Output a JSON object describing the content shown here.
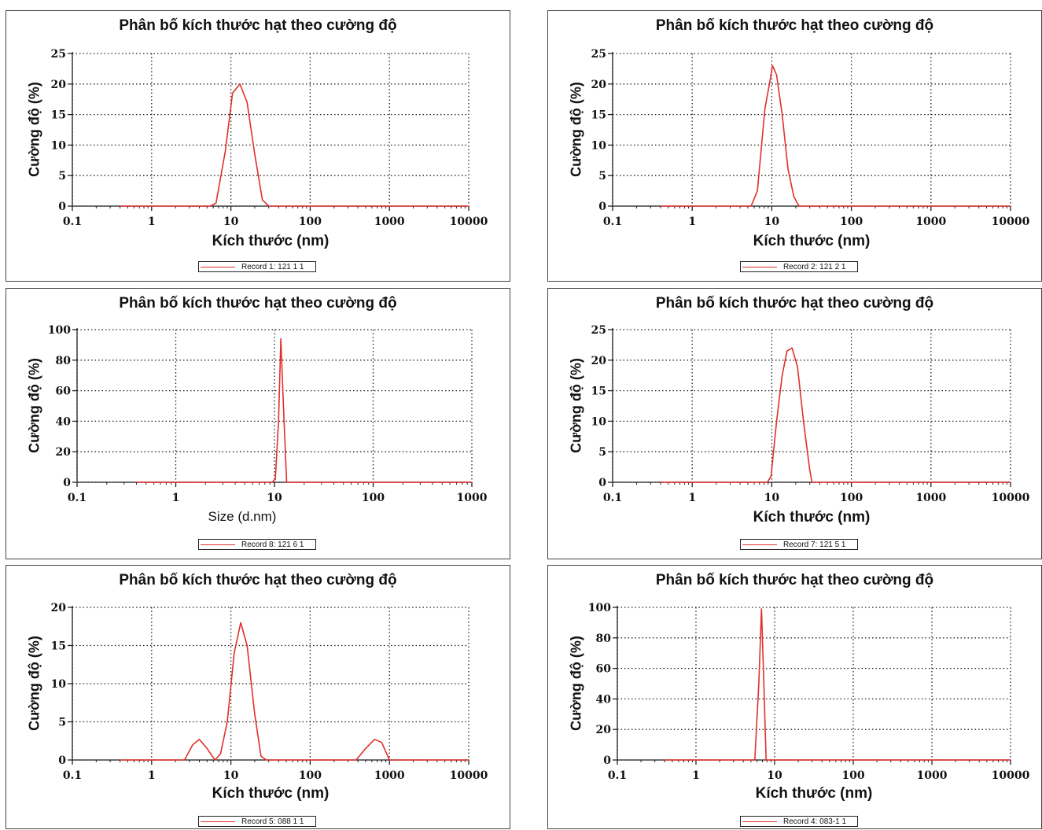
{
  "colors": {
    "series": "#e0302b",
    "grid": "#222222",
    "axis": "#222222"
  },
  "chart_data": [
    {
      "id": "p1",
      "type": "line",
      "xscale": "log",
      "title": "Phân bố kích thước hạt theo cường độ",
      "xlabel": "Kích thước (nm)",
      "ylabel": "Cường độ (%)",
      "xlim": [
        0.1,
        10000
      ],
      "ylim": [
        0,
        25
      ],
      "xticks": [
        0.1,
        1,
        10,
        100,
        1000,
        10000
      ],
      "xtick_labels": [
        "0.1",
        "1",
        "10",
        "100",
        "1000",
        "10000"
      ],
      "yticks": [
        0,
        5,
        10,
        15,
        20,
        25
      ],
      "ytick_labels": [
        "0",
        "5",
        "10",
        "15",
        "20",
        "25"
      ],
      "grid": true,
      "legend": "Record 1: 121 1 1",
      "series": [
        {
          "name": "Record 1: 121 1 1",
          "x": [
            0.4,
            5.5,
            6.5,
            8.5,
            10.5,
            13,
            16,
            20,
            25,
            30,
            10000
          ],
          "y": [
            0,
            0,
            0.5,
            9,
            18.5,
            20,
            17,
            8.5,
            1,
            0,
            0
          ]
        }
      ]
    },
    {
      "id": "p2",
      "type": "line",
      "xscale": "log",
      "title": "Phân bố kích thước hạt theo cường độ",
      "xlabel": "Kích thước (nm)",
      "ylabel": "Cường độ (%)",
      "xlim": [
        0.1,
        10000
      ],
      "ylim": [
        0,
        25
      ],
      "xticks": [
        0.1,
        1,
        10,
        100,
        1000,
        10000
      ],
      "xtick_labels": [
        "0.1",
        "1",
        "10",
        "100",
        "1000",
        "10000"
      ],
      "yticks": [
        0,
        5,
        10,
        15,
        20,
        25
      ],
      "ytick_labels": [
        "0",
        "5",
        "10",
        "15",
        "20",
        "25"
      ],
      "grid": true,
      "legend": "Record 2: 121 2 1",
      "series": [
        {
          "name": "Record 2: 121 2 1",
          "x": [
            0.4,
            5.5,
            6.6,
            8.2,
            9.5,
            10.2,
            11.5,
            13.5,
            16,
            19,
            22,
            10000
          ],
          "y": [
            0,
            0,
            2.5,
            16,
            20.5,
            23,
            21.5,
            15,
            6,
            1.5,
            0,
            0
          ]
        }
      ]
    },
    {
      "id": "p3",
      "type": "line",
      "xscale": "log",
      "title": "Phân bố kích thước hạt theo cường độ",
      "xlabel": "Size (d.nm)",
      "ylabel": "Cường độ (%)",
      "xlim": [
        0.1,
        1000
      ],
      "ylim": [
        0,
        100
      ],
      "xticks": [
        0.1,
        1,
        10,
        100,
        1000
      ],
      "xtick_labels": [
        "0.1",
        "1",
        "10",
        "100",
        "1000"
      ],
      "yticks": [
        0,
        20,
        40,
        60,
        80,
        100
      ],
      "ytick_labels": [
        "0",
        "20",
        "40",
        "60",
        "80",
        "100"
      ],
      "grid": true,
      "legend": "Record 8: 121 6 1",
      "series": [
        {
          "name": "Record 8: 121 6 1",
          "x": [
            0.4,
            9.5,
            10.2,
            11.0,
            11.6,
            12.5,
            13.3,
            1000
          ],
          "y": [
            0,
            0,
            2,
            40,
            94,
            40,
            0,
            0
          ]
        }
      ]
    },
    {
      "id": "p4",
      "type": "line",
      "xscale": "log",
      "title": "Phân bố kích thước hạt theo cường độ",
      "xlabel": "Kích thước (nm)",
      "ylabel": "Cường độ (%)",
      "xlim": [
        0.1,
        10000
      ],
      "ylim": [
        0,
        25
      ],
      "xticks": [
        0.1,
        1,
        10,
        100,
        1000,
        10000
      ],
      "xtick_labels": [
        "0.1",
        "1",
        "10",
        "100",
        "1000",
        "10000"
      ],
      "yticks": [
        0,
        5,
        10,
        15,
        20,
        25
      ],
      "ytick_labels": [
        "0",
        "5",
        "10",
        "15",
        "20",
        "25"
      ],
      "grid": true,
      "legend": "Record 7: 121 5 1",
      "series": [
        {
          "name": "Record 7: 121 5 1",
          "x": [
            0.4,
            8.8,
            9.8,
            11.5,
            13.5,
            15.5,
            18,
            21,
            25,
            30,
            32,
            10000
          ],
          "y": [
            0,
            0,
            1,
            10,
            17.5,
            21.5,
            22,
            19,
            10,
            2,
            0,
            0
          ]
        }
      ]
    },
    {
      "id": "p5",
      "type": "line",
      "xscale": "log",
      "title": "Phân bố kích thước hạt theo cường độ",
      "xlabel": "Kích thước (nm)",
      "ylabel": "Cường độ (%)",
      "xlim": [
        0.1,
        10000
      ],
      "ylim": [
        0,
        20
      ],
      "xticks": [
        0.1,
        1,
        10,
        100,
        1000,
        10000
      ],
      "xtick_labels": [
        "0.1",
        "1",
        "10",
        "100",
        "1000",
        "10000"
      ],
      "yticks": [
        0,
        5,
        10,
        15,
        20
      ],
      "ytick_labels": [
        "0",
        "5",
        "10",
        "15",
        "20"
      ],
      "grid": true,
      "legend": "Record 5: 088 1 1",
      "series": [
        {
          "name": "Record 5: 088 1 1",
          "x": [
            0.4,
            2.6,
            3.3,
            4.0,
            5.0,
            6.3,
            7.4,
            9.0,
            11.0,
            13.3,
            16.0,
            20.0,
            24.0,
            28.0,
            380,
            500,
            650,
            800,
            1000,
            10000
          ],
          "y": [
            0,
            0,
            2,
            2.7,
            1.5,
            0,
            0.8,
            5,
            14,
            18,
            15,
            6,
            0.5,
            0,
            0,
            1.5,
            2.7,
            2.3,
            0,
            0
          ]
        }
      ]
    },
    {
      "id": "p6",
      "type": "line",
      "xscale": "log",
      "title": "Phân bố kích thước hạt theo cường độ",
      "xlabel": "Kích thước (nm)",
      "ylabel": "Cường độ (%)",
      "xlim": [
        0.1,
        10000
      ],
      "ylim": [
        0,
        100
      ],
      "xticks": [
        0.1,
        1,
        10,
        100,
        1000,
        10000
      ],
      "xtick_labels": [
        "0.1",
        "1",
        "10",
        "100",
        "1000",
        "10000"
      ],
      "yticks": [
        0,
        20,
        40,
        60,
        80,
        100
      ],
      "ytick_labels": [
        "0",
        "20",
        "40",
        "60",
        "80",
        "100"
      ],
      "grid": true,
      "legend": "Record 4: 083-1 1",
      "series": [
        {
          "name": "Record 4: 083-1 1",
          "x": [
            0.4,
            5.6,
            6.3,
            6.8,
            7.3,
            7.8,
            10000
          ],
          "y": [
            0,
            0,
            50,
            99,
            50,
            0,
            0
          ]
        }
      ]
    }
  ]
}
